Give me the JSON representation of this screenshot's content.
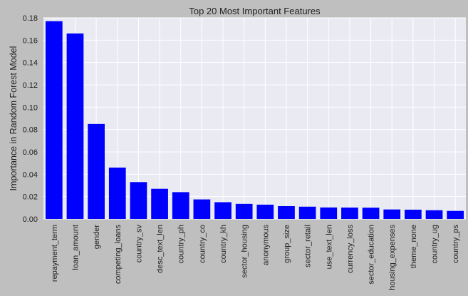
{
  "chart_data": {
    "type": "bar",
    "title": "Top 20 Most Important Features",
    "xlabel": "",
    "ylabel": "Importance in Random Forest Model",
    "ylim": [
      0,
      0.18
    ],
    "yticks": [
      "0.00",
      "0.02",
      "0.04",
      "0.06",
      "0.08",
      "0.10",
      "0.12",
      "0.14",
      "0.16",
      "0.18"
    ],
    "grid": true,
    "categories": [
      "repayment_term",
      "loan_amount",
      "gender",
      "competing_loans",
      "country_sv",
      "desc_text_len",
      "country_ph",
      "country_co",
      "country_kh",
      "sector_housing",
      "anonymous",
      "group_size",
      "sector_retail",
      "use_text_len",
      "currency_loss",
      "sector_education",
      "housing_expenses",
      "theme_none",
      "country_ug",
      "country_ps"
    ],
    "values": [
      0.177,
      0.166,
      0.085,
      0.046,
      0.033,
      0.027,
      0.024,
      0.0175,
      0.015,
      0.0135,
      0.0128,
      0.0115,
      0.011,
      0.0103,
      0.0102,
      0.0101,
      0.0085,
      0.0083,
      0.0078,
      0.0072
    ],
    "colors": {
      "bar": "#0000ff",
      "plot_bg": "#eaeaf2",
      "figure_bg": "#bfbfbf",
      "grid": "#ffffff"
    }
  }
}
